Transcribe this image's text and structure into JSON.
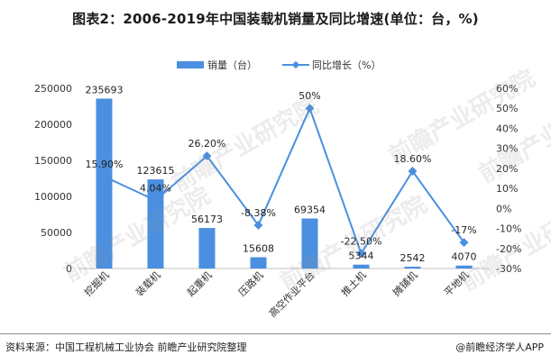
{
  "title": "图表2：2006-2019年中国装载机销量及同比增速(单位：台，%)",
  "footer": {
    "source": "资料来源：中国工程机械工业协会 前瞻产业研究院整理",
    "brand": "@前瞻经济学人APP"
  },
  "watermark": "前瞻产业研究院",
  "chart_data": {
    "type": "bar+line",
    "categories": [
      "挖掘机",
      "装载机",
      "起重机",
      "压路机",
      "高空作业平台",
      "推土机",
      "摊铺机",
      "平地机"
    ],
    "series": [
      {
        "name": "销量（台）",
        "type": "bar",
        "axis": "left",
        "color": "#4a8fe0",
        "values": [
          235693,
          123615,
          56173,
          15608,
          69354,
          5344,
          2542,
          4070
        ],
        "labels": [
          "235693",
          "123615",
          "56173",
          "15608",
          "69354",
          "5344",
          "2542",
          "4070"
        ]
      },
      {
        "name": "同比增长（%）",
        "type": "line",
        "axis": "right",
        "color": "#4a8fe0",
        "values": [
          15.9,
          4.04,
          26.2,
          -8.38,
          50,
          -22.5,
          18.6,
          -17
        ],
        "labels": [
          "15.90%",
          "4.04%",
          "26.20%",
          "-8.38%",
          "50%",
          "-22.50%",
          "18.60%",
          "-17%"
        ]
      }
    ],
    "y_left": {
      "min": 0,
      "max": 250000,
      "ticks": [
        0,
        50000,
        100000,
        150000,
        200000,
        250000
      ],
      "tick_labels": [
        "0",
        "50000",
        "100000",
        "150000",
        "200000",
        "250000"
      ]
    },
    "y_right": {
      "min": -30,
      "max": 60,
      "ticks": [
        -30,
        -20,
        -10,
        0,
        10,
        20,
        30,
        40,
        50,
        60
      ],
      "tick_labels": [
        "-30%",
        "-20%",
        "-10%",
        "0%",
        "10%",
        "20%",
        "30%",
        "40%",
        "50%",
        "60%"
      ]
    },
    "grid": false,
    "legend_position": "top-center"
  }
}
